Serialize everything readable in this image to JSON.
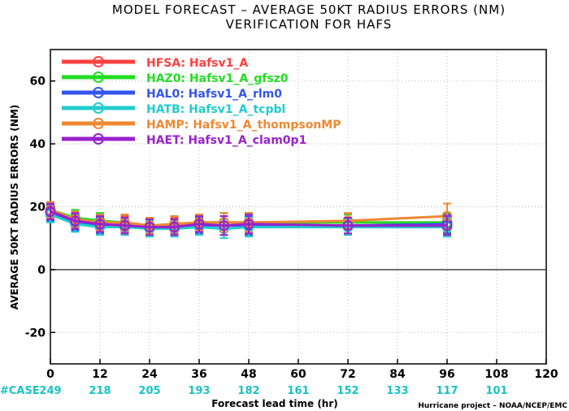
{
  "chart_data": {
    "type": "line",
    "title": "MODEL FORECAST – AVERAGE 50KT RADIUS ERRORS (NM)",
    "subtitle": "VERIFICATION FOR HAFS",
    "xlabel": "Forecast lead time (hr)",
    "ylabel": "AVERAGE 50KT RADIUS ERRORS (NM)",
    "credit": "Hurricane project – NOAA/NCEP/EMC",
    "xlim": [
      0,
      120
    ],
    "ylim": [
      -30,
      70
    ],
    "x_ticks": [
      0,
      12,
      24,
      36,
      48,
      60,
      72,
      84,
      96,
      108,
      120
    ],
    "y_ticks": [
      -20,
      0,
      20,
      40,
      60
    ],
    "grid": true,
    "legend_position": "top-left",
    "cases_label": "#CASE",
    "cases": [
      {
        "x": 0,
        "n": "249"
      },
      {
        "x": 12,
        "n": "218"
      },
      {
        "x": 24,
        "n": "205"
      },
      {
        "x": 36,
        "n": "193"
      },
      {
        "x": 48,
        "n": "182"
      },
      {
        "x": 60,
        "n": "161"
      },
      {
        "x": 72,
        "n": "152"
      },
      {
        "x": 84,
        "n": "133"
      },
      {
        "x": 96,
        "n": "117"
      },
      {
        "x": 108,
        "n": "101"
      }
    ],
    "x": [
      0,
      6,
      12,
      18,
      24,
      30,
      36,
      42,
      48,
      72,
      96
    ],
    "series": [
      {
        "name": "HFSA:  Hafsv1_A",
        "color": "#ff4040",
        "values": [
          18.5,
          16.0,
          15.0,
          14.5,
          14.0,
          14.0,
          15.0,
          15.0,
          15.0,
          15.0,
          15.0
        ],
        "err": [
          2.5,
          2.5,
          2.5,
          2.5,
          2.5,
          2.5,
          2.5,
          3.0,
          3.0,
          2.5,
          3.0
        ]
      },
      {
        "name": "HAZ0:  Hafsv1_A_gfsz0",
        "color": "#22dd22",
        "values": [
          19.0,
          16.5,
          15.5,
          15.0,
          14.0,
          14.5,
          15.0,
          15.0,
          15.0,
          15.0,
          15.0
        ],
        "err": [
          2.5,
          2.5,
          2.5,
          2.5,
          2.5,
          2.5,
          2.5,
          3.0,
          3.0,
          2.5,
          3.0
        ]
      },
      {
        "name": "HAL0:  Hafsv1_A_rlm0",
        "color": "#3355ee",
        "values": [
          18.0,
          15.0,
          14.0,
          14.0,
          13.5,
          13.5,
          14.0,
          14.0,
          14.0,
          14.0,
          14.5
        ],
        "err": [
          2.5,
          2.5,
          2.5,
          2.5,
          2.5,
          2.5,
          2.5,
          3.0,
          3.0,
          2.5,
          3.0
        ]
      },
      {
        "name": "HATB:  Hafsv1_A_tcpbl",
        "color": "#22cccc",
        "values": [
          17.5,
          14.5,
          13.5,
          13.5,
          13.0,
          13.0,
          13.5,
          13.0,
          13.5,
          13.5,
          13.5
        ],
        "err": [
          2.5,
          2.5,
          2.5,
          2.5,
          2.5,
          2.5,
          2.5,
          3.0,
          3.0,
          2.5,
          3.0
        ]
      },
      {
        "name": "HAMP:  Hafsv1_A_thompsonMP",
        "color": "#ee8833",
        "values": [
          19.0,
          16.0,
          15.0,
          15.0,
          14.0,
          14.5,
          15.0,
          15.0,
          15.0,
          15.5,
          17.0
        ],
        "err": [
          2.5,
          2.5,
          2.5,
          2.5,
          2.5,
          2.5,
          2.5,
          3.0,
          3.0,
          2.5,
          4.0
        ]
      },
      {
        "name": "HAET:  Hafsv1_A_clam0p1",
        "color": "#9922cc",
        "values": [
          18.5,
          15.5,
          14.5,
          14.0,
          13.5,
          13.5,
          14.5,
          14.0,
          14.5,
          14.0,
          14.0
        ],
        "err": [
          2.5,
          2.5,
          2.5,
          2.5,
          2.5,
          2.5,
          2.5,
          3.0,
          3.0,
          2.5,
          3.0
        ]
      }
    ]
  }
}
